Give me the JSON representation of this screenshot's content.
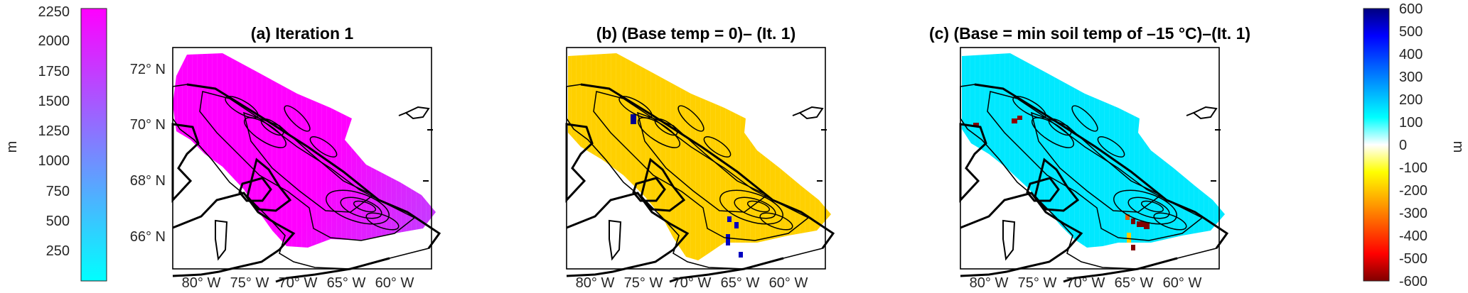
{
  "colors": {
    "elevation_low": "#00ffff",
    "elevation_high": "#ff00ff",
    "diff_ramp": [
      "#800000",
      "#ff0000",
      "#ff8000",
      "#ffff00",
      "#ffffff",
      "#00ffff",
      "#0080ff",
      "#0000ff",
      "#000080"
    ],
    "frame": "#000000"
  },
  "left_colorbar": {
    "unit": "m",
    "range": [
      0,
      2300
    ],
    "ticks": [
      "2250",
      "2000",
      "1750",
      "1500",
      "1250",
      "1000",
      "750",
      "500",
      "250"
    ]
  },
  "right_colorbar": {
    "unit": "m",
    "range": [
      -600,
      600
    ],
    "ticks": [
      "600",
      "500",
      "400",
      "300",
      "200",
      "100",
      "0",
      "-100",
      "-200",
      "-300",
      "-400",
      "-500",
      "-600"
    ]
  },
  "lat_ticks": [
    "72° N",
    "70° N",
    "68° N",
    "66° N"
  ],
  "lon_ticks": [
    "80° W",
    "75° W",
    "70° W",
    "65° W",
    "60° W"
  ],
  "panels": [
    {
      "title": "(a) Iteration 1",
      "colormap": "elevation"
    },
    {
      "title": "(b) (Base temp = 0)–  (It. 1)",
      "colormap": "diff_negative"
    },
    {
      "title": "(c) (Base = min soil temp of –15 °C)–(It. 1)",
      "colormap": "diff_positive"
    }
  ]
}
